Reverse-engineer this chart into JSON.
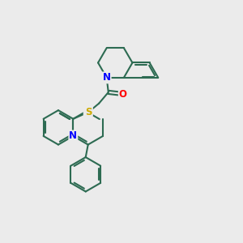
{
  "background_color": "#ebebeb",
  "bond_color": "#2d6b52",
  "bond_width": 1.5,
  "atom_colors": {
    "N": "#0000ff",
    "O": "#ff0000",
    "S": "#ccaa00",
    "C": "#2d6b52"
  },
  "font_size": 8.5,
  "fig_size": [
    3.0,
    3.0
  ],
  "dpi": 100
}
